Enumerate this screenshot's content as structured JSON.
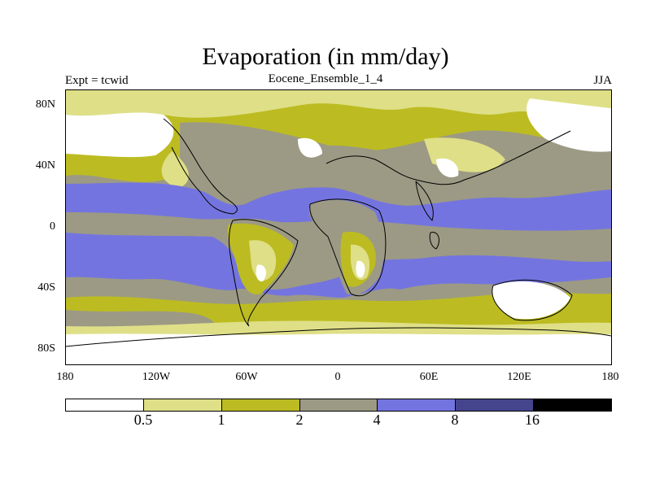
{
  "title": "Evaporation (in mm/day)",
  "left_string": "Expt = tcwid",
  "center_string": "Eocene_Ensemble_1_4",
  "right_string": "JJA",
  "lat_labels": [
    "80N",
    "40N",
    "0",
    "40S",
    "80S"
  ],
  "lon_labels": [
    "180",
    "120W",
    "60W",
    "0",
    "60E",
    "120E",
    "180"
  ],
  "colorbar": {
    "colors": [
      "#ffffff",
      "#dfdf88",
      "#bcbc22",
      "#9c9a84",
      "#7474e0",
      "#45458e",
      "#000000"
    ],
    "labels": [
      "0.5",
      "1",
      "2",
      "4",
      "8",
      "16"
    ]
  },
  "map_colors": {
    "white": "#ffffff",
    "light_yellow": "#dfdf88",
    "olive": "#bcbc22",
    "gray": "#9c9a84",
    "blue": "#7474e0"
  }
}
